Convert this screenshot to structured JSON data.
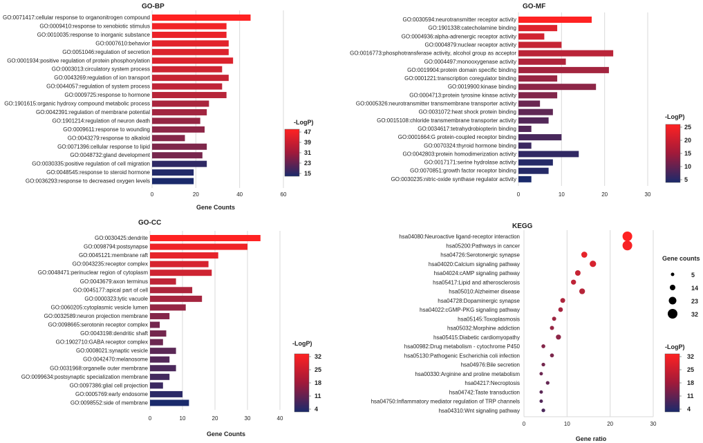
{
  "chart_data": [
    {
      "id": "bp",
      "type": "bar",
      "title": "GO-BP",
      "xlabel": "Gene Counts",
      "xlim": [
        0,
        60
      ],
      "xticks": [
        0,
        20,
        40,
        60
      ],
      "legend_title": "-LogP)",
      "color_range": [
        15,
        47
      ],
      "legend_ticks": [
        47,
        39,
        31,
        23,
        15
      ],
      "categories": [
        "GO:0071417:cellular response to organonitrogen compound",
        "GO:0009410:response to xenobiotic stimulus",
        "GO:0010035:response to inorganic substance",
        "GO:0007610:behavior",
        "GO:0051046:regulation of secretion",
        "GO:0001934:positive regulation of protein phosphorylation",
        "GO:0003013:circulatory system process",
        "GO:0043269:regulation of ion transport",
        "GO:0044057:regulation of system process",
        "GO:0009725:response to hormone",
        "GO:1901615:organic hydroxy compound metabolic process",
        "GO:0042391:regulation of membrane potential",
        "GO:1901214:regulation of neuron death",
        "GO:0009611:response to wounding",
        "GO:0043279:response to alkaloid",
        "GO:0071396:cellular response to lipid",
        "GO:0048732:gland development",
        "GO:0030335:positive regulation of cell migration",
        "GO:0048545:response to steroid hormone",
        "GO:0036293:response to decreased oxygen levels"
      ],
      "values": [
        45,
        34,
        34,
        35,
        35,
        37,
        32,
        35,
        32,
        34,
        26,
        25,
        22,
        24,
        15,
        25,
        23,
        25,
        19,
        19
      ],
      "logp": [
        47,
        45,
        44,
        43,
        42,
        42,
        40,
        39,
        38,
        37,
        35,
        34,
        32,
        31,
        30,
        29,
        28,
        18,
        16,
        15
      ]
    },
    {
      "id": "mf",
      "type": "bar",
      "title": "GO-MF",
      "xlabel": "",
      "xlim": [
        0,
        30
      ],
      "xticks": [
        0,
        10,
        20,
        30
      ],
      "legend_title": "-LogP)",
      "color_range": [
        5,
        25
      ],
      "legend_ticks": [
        25,
        20,
        15,
        10,
        5
      ],
      "categories": [
        "GO:0030594:neurotransmitter receptor activity",
        "GO:1901338:catecholamine binding",
        "GO:0004936:alpha-adrenergic receptor activity",
        "GO:0004879:nuclear receptor activity",
        "GO:0016773:phosphotransferase activity, alcohol group as acceptor",
        "GO:0004497:monooxygenase activity",
        "GO:0019904:protein domain specific binding",
        "GO:0001221:transcription coregulator binding",
        "GO:0019900:kinase binding",
        "GO:0004713:protein tyrosine kinase activity",
        "GO:0005326:neurotransmitter transmembrane transporter activity",
        "GO:0031072:heat shock protein binding",
        "GO:0015108:chloride transmembrane transporter activity",
        "GO:0034617:tetrahydrobiopterin binding",
        "GO:0001664:G protein-coupled receptor binding",
        "GO:0070324:thyroid hormone binding",
        "GO:0042803:protein homodimerization activity",
        "GO:0017171:serine hydrolase activity",
        "GO:0070851:growth factor receptor binding",
        "GO:0030235:nitric-oxide synthase regulator activity"
      ],
      "values": [
        17,
        9,
        6,
        10,
        22,
        11,
        21,
        9,
        18,
        9,
        5,
        8,
        7,
        3,
        10,
        3,
        14,
        8,
        7,
        3
      ],
      "logp": [
        25,
        22,
        21,
        20,
        19,
        18,
        17,
        16,
        15,
        14,
        12,
        11,
        10,
        10,
        9,
        8,
        7,
        6,
        6,
        5
      ]
    },
    {
      "id": "cc",
      "type": "bar",
      "title": "GO-CC",
      "xlabel": "Gene Counts",
      "xlim": [
        0,
        40
      ],
      "xticks": [
        0,
        10,
        20,
        30,
        40
      ],
      "legend_title": "-LogP)",
      "color_range": [
        4,
        32
      ],
      "legend_ticks": [
        32,
        25,
        18,
        11,
        4
      ],
      "categories": [
        "GO:0030425:dendrite",
        "GO:0098794:postsynapse",
        "GO:0045121:membrane raft",
        "GO:0043235:receptor complex",
        "GO:0048471:perinuclear region of cytoplasm",
        "GO:0043679:axon terminus",
        "GO:0045177:apical part of cell",
        "GO:0000323:lytic vacuole",
        "GO:0060205:cytoplasmic vesicle lumen",
        "GO:0032589:neuron projection membrane",
        "GO:0098665:serotonin receptor complex",
        "GO:0043198:dendritic shaft",
        "GO:1902710:GABA receptor complex",
        "GO:0008021:synaptic vesicle",
        "GO:0042470:melanosome",
        "GO:0031968:organelle outer membrane",
        "GO:0099634:postsynaptic specialization membrane",
        "GO:0097386:glial cell projection",
        "GO:0005769:early endosome",
        "GO:0098552:side of membrane"
      ],
      "values": [
        34,
        30,
        21,
        18,
        19,
        8,
        13,
        16,
        11,
        6,
        3,
        5,
        4,
        8,
        6,
        8,
        6,
        4,
        10,
        12
      ],
      "logp": [
        32,
        30,
        29,
        27,
        26,
        24,
        22,
        21,
        19,
        17,
        15,
        15,
        14,
        12,
        11,
        10,
        9,
        8,
        6,
        4
      ]
    },
    {
      "id": "kegg",
      "type": "scatter",
      "title": "KEGG",
      "xlabel": "Gene ratio",
      "xlim": [
        0,
        30
      ],
      "xticks": [
        0,
        10,
        20,
        30
      ],
      "legend_title": "-LogP)",
      "color_range": [
        4,
        32
      ],
      "legend_ticks": [
        32,
        25,
        18,
        11,
        4
      ],
      "size_legend_title": "Gene counts",
      "size_legend": [
        5,
        14,
        23,
        32
      ],
      "categories": [
        "hsa04080:Neuroactive ligand-receptor interaction",
        "hsa05200:Pathways in cancer",
        "hsa04726:Serotonergic synapse",
        "hsa04020:Calcium signaling pathway",
        "hsa04024:cAMP signaling pathway",
        "hsa05417:Lipid and atherosclerosis",
        "hsa05010:Alzheimer disease",
        "hsa04728:Dopaminergic synapse",
        "hsa04022:cGMP-PKG signaling pathway",
        "hsa05145:Toxoplasmosis",
        "hsa05032:Morphine addiction",
        "hsa05415:Diabetic cardiomyopathy",
        "hsa00982:Drug metabolism - cytochrome P450",
        "hsa05130:Pathogenic Escherichia coli infection",
        "hsa04976:Bile secretion",
        "hsa00330:Arginine and proline metabolism",
        "hsa04217:Necroptosis",
        "hsa04742:Taste transduction",
        "hsa04750:Inflammatory mediator regulation of TRP channels",
        "hsa04310:Wnt signaling pathway"
      ],
      "x": [
        24,
        24,
        14,
        16,
        12.5,
        11.5,
        13.5,
        9,
        8.5,
        7,
        6.5,
        8,
        4.5,
        6.5,
        4.5,
        4,
        5.5,
        4,
        4,
        4.5
      ],
      "counts": [
        32,
        32,
        16,
        18,
        14,
        12,
        15,
        11,
        10,
        8,
        8,
        12,
        7,
        7,
        6,
        5,
        6,
        5,
        5,
        6
      ],
      "logp": [
        32,
        31,
        29,
        27,
        25,
        24,
        23,
        22,
        21,
        20,
        19,
        18,
        17,
        16,
        15,
        14,
        13,
        12,
        11,
        10
      ]
    }
  ],
  "colors": {
    "high": "#ff2222",
    "low": "#1a2a6b"
  }
}
